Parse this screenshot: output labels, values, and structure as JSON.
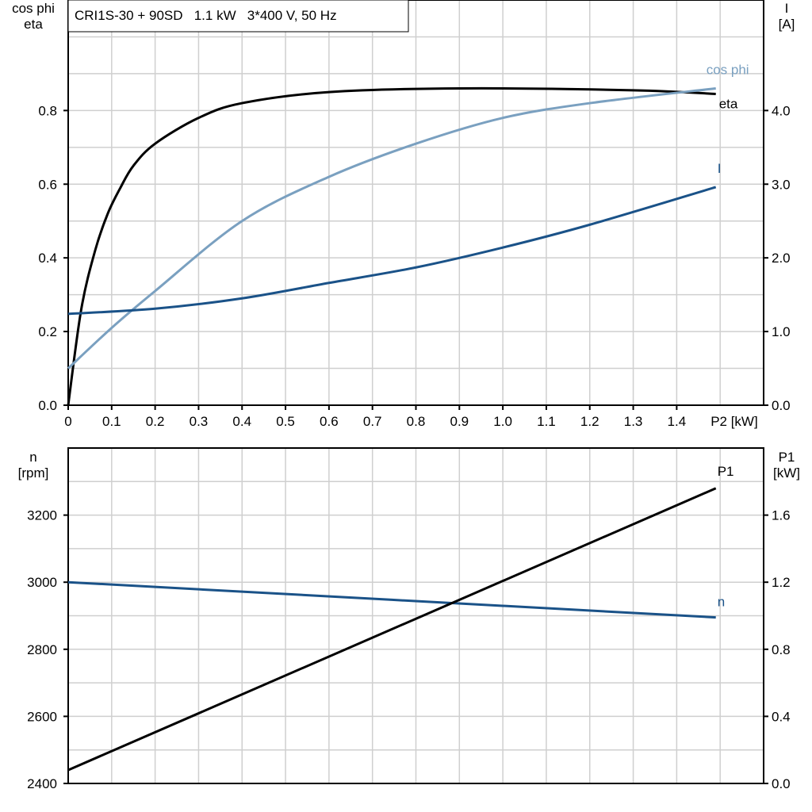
{
  "chart_data": [
    {
      "type": "line",
      "title": "CRI1S-30 + 90SD   1.1 kW   3*400 V, 50 Hz",
      "xlabel": "P2 [kW]",
      "xlim": [
        0,
        1.6
      ],
      "x_ticks": [
        "0",
        "0.1",
        "0.2",
        "0.3",
        "0.4",
        "0.5",
        "0.6",
        "0.7",
        "0.8",
        "0.9",
        "1.0",
        "1.1",
        "1.2",
        "1.3",
        "1.4"
      ],
      "ylabel_left": [
        "cos phi",
        "eta"
      ],
      "ylim_left": [
        0,
        1.1
      ],
      "y_ticks_left": [
        "0.0",
        "0.2",
        "0.4",
        "0.6",
        "0.8"
      ],
      "ylabel_right": [
        "I",
        "[A]"
      ],
      "ylim_right": [
        0,
        5.5
      ],
      "y_ticks_right": [
        "0.0",
        "1.0",
        "2.0",
        "3.0",
        "4.0"
      ],
      "grid": true,
      "series": [
        {
          "name": "eta",
          "axis": "left",
          "color": "#000000",
          "x": [
            0,
            0.03,
            0.062,
            0.091,
            0.12,
            0.15,
            0.2,
            0.3,
            0.4,
            0.6,
            0.9,
            1.3,
            1.49
          ],
          "y": [
            0,
            0.26,
            0.42,
            0.52,
            0.59,
            0.65,
            0.71,
            0.78,
            0.82,
            0.85,
            0.86,
            0.855,
            0.845
          ]
        },
        {
          "name": "cos phi",
          "axis": "left",
          "color": "#7aa0c0",
          "x": [
            0,
            0.1,
            0.2,
            0.4,
            0.6,
            0.8,
            1.0,
            1.2,
            1.49
          ],
          "y": [
            0.1,
            0.21,
            0.31,
            0.5,
            0.62,
            0.71,
            0.78,
            0.82,
            0.86
          ]
        },
        {
          "name": "I",
          "axis": "right",
          "color": "#1a5288",
          "x": [
            0,
            0.2,
            0.4,
            0.6,
            0.8,
            1.0,
            1.2,
            1.49
          ],
          "y": [
            1.24,
            1.31,
            1.45,
            1.66,
            1.87,
            2.14,
            2.45,
            2.96
          ]
        }
      ]
    },
    {
      "type": "line",
      "xlim": [
        0,
        1.6
      ],
      "ylabel_left": [
        "n",
        "[rpm]"
      ],
      "ylim_left": [
        2400,
        3400
      ],
      "y_ticks_left": [
        "2400",
        "2600",
        "2800",
        "3000",
        "3200"
      ],
      "ylabel_right": [
        "P1",
        "[kW]"
      ],
      "ylim_right": [
        0,
        2.0
      ],
      "y_ticks_right": [
        "0.0",
        "0.4",
        "0.8",
        "1.2",
        "1.6"
      ],
      "grid": true,
      "series": [
        {
          "name": "n",
          "axis": "left",
          "color": "#1a5288",
          "x": [
            0,
            1.49
          ],
          "y": [
            3000,
            2895
          ]
        },
        {
          "name": "P1",
          "axis": "right",
          "color": "#000000",
          "x": [
            0,
            1.49
          ],
          "y": [
            0.08,
            1.76
          ]
        }
      ]
    }
  ]
}
